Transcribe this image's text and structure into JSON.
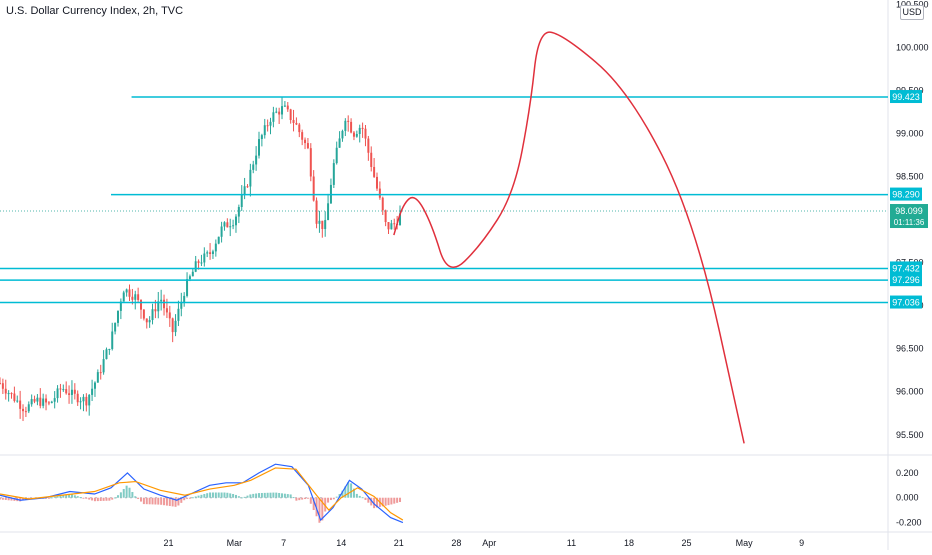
{
  "header": {
    "title": "U.S. Dollar Currency Index, 2h, TVC",
    "currency": "USD"
  },
  "colors": {
    "hline": "#00bcd4",
    "projection": "#e0303c",
    "up": "#26a69a",
    "down": "#ef5350",
    "macd": "#2962ff",
    "signal": "#ff9800",
    "price_badge": "#22ab94"
  },
  "chart_data": [
    {
      "type": "line",
      "title": "U.S. Dollar Currency Index, 2h, TVC",
      "xlabel": "",
      "ylabel": "",
      "ylim": [
        95.3,
        100.55
      ],
      "y_ticks": [
        "95.500",
        "96.000",
        "96.500",
        "97.000",
        "97.500",
        "98.000",
        "98.500",
        "99.000",
        "99.500",
        "100.000",
        "100.500"
      ],
      "x_ticks": [
        "21",
        "Mar",
        "7",
        "14",
        "21",
        "28",
        "Apr",
        "11",
        "18",
        "25",
        "May",
        "9"
      ],
      "x_tick_days": [
        -8,
        0,
        6,
        13,
        20,
        27,
        31,
        41,
        48,
        55,
        62,
        69
      ],
      "xlim": [
        -28.5,
        79.5
      ],
      "price_path_approx": [
        {
          "x": -28.5,
          "y": 96.1
        },
        {
          "x": -27,
          "y": 95.95
        },
        {
          "x": -25.5,
          "y": 95.8
        },
        {
          "x": -24,
          "y": 95.9
        },
        {
          "x": -22.5,
          "y": 95.85
        },
        {
          "x": -21,
          "y": 96.05
        },
        {
          "x": -19.5,
          "y": 95.95
        },
        {
          "x": -18,
          "y": 95.9
        },
        {
          "x": -16.5,
          "y": 96.2
        },
        {
          "x": -15,
          "y": 96.6
        },
        {
          "x": -13.5,
          "y": 97.2
        },
        {
          "x": -12,
          "y": 97.1
        },
        {
          "x": -10.5,
          "y": 96.8
        },
        {
          "x": -9,
          "y": 97.1
        },
        {
          "x": -7.5,
          "y": 96.7
        },
        {
          "x": -6,
          "y": 97.2
        },
        {
          "x": -4.5,
          "y": 97.5
        },
        {
          "x": -3,
          "y": 97.6
        },
        {
          "x": -1.5,
          "y": 97.9
        },
        {
          "x": 0,
          "y": 98.0
        },
        {
          "x": 1.5,
          "y": 98.4
        },
        {
          "x": 3,
          "y": 98.9
        },
        {
          "x": 4.5,
          "y": 99.2
        },
        {
          "x": 6,
          "y": 99.3
        },
        {
          "x": 7.5,
          "y": 99.1
        },
        {
          "x": 9,
          "y": 98.8
        },
        {
          "x": 10,
          "y": 98.0
        },
        {
          "x": 11,
          "y": 97.9
        },
        {
          "x": 12,
          "y": 98.6
        },
        {
          "x": 13.5,
          "y": 99.2
        },
        {
          "x": 14.5,
          "y": 99.0
        },
        {
          "x": 15.5,
          "y": 99.1
        },
        {
          "x": 16.5,
          "y": 98.7
        },
        {
          "x": 17.5,
          "y": 98.3
        },
        {
          "x": 18.5,
          "y": 97.9
        },
        {
          "x": 19.5,
          "y": 97.95
        },
        {
          "x": 20.5,
          "y": 98.1
        }
      ],
      "projection_path_approx": [
        {
          "x": 19.4,
          "y": 97.82
        },
        {
          "x": 20.5,
          "y": 98.18
        },
        {
          "x": 22,
          "y": 98.3
        },
        {
          "x": 24,
          "y": 97.95
        },
        {
          "x": 26,
          "y": 97.33
        },
        {
          "x": 30,
          "y": 97.7
        },
        {
          "x": 34,
          "y": 98.3
        },
        {
          "x": 36,
          "y": 99.3
        },
        {
          "x": 37,
          "y": 100.2
        },
        {
          "x": 40,
          "y": 100.15
        },
        {
          "x": 48,
          "y": 99.5
        },
        {
          "x": 56,
          "y": 98.0
        },
        {
          "x": 62,
          "y": 95.4
        }
      ],
      "horizontal_levels": [
        {
          "label": "99.423",
          "value": 99.423,
          "start_x": -12.5
        },
        {
          "label": "98.290",
          "value": 98.29,
          "start_x": -15
        },
        {
          "label": "97.432",
          "value": 97.432,
          "start_x": -28.5
        },
        {
          "label": "97.296",
          "value": 97.296,
          "start_x": -28.5
        },
        {
          "label": "97.036",
          "value": 97.036,
          "start_x": -28.5
        }
      ],
      "last_price": {
        "value": 98.099,
        "label": "98.099",
        "countdown": "01:11:36"
      }
    },
    {
      "type": "line",
      "title": "",
      "ylim": [
        -0.26,
        0.32
      ],
      "y_ticks": [
        "0.200",
        "0.000",
        "-0.200"
      ],
      "series": [
        {
          "role": "macd",
          "values": [
            {
              "x": -28.5,
              "y": 0.02
            },
            {
              "x": -26,
              "y": -0.02
            },
            {
              "x": -23,
              "y": 0.0
            },
            {
              "x": -20,
              "y": 0.05
            },
            {
              "x": -17,
              "y": 0.03
            },
            {
              "x": -15,
              "y": 0.08
            },
            {
              "x": -13,
              "y": 0.2
            },
            {
              "x": -11,
              "y": 0.07
            },
            {
              "x": -9,
              "y": 0.02
            },
            {
              "x": -7,
              "y": -0.02
            },
            {
              "x": -5,
              "y": 0.04
            },
            {
              "x": -3,
              "y": 0.1
            },
            {
              "x": -1,
              "y": 0.12
            },
            {
              "x": 1,
              "y": 0.12
            },
            {
              "x": 3,
              "y": 0.2
            },
            {
              "x": 5,
              "y": 0.27
            },
            {
              "x": 7,
              "y": 0.25
            },
            {
              "x": 9,
              "y": 0.1
            },
            {
              "x": 10.5,
              "y": -0.18
            },
            {
              "x": 12,
              "y": -0.08
            },
            {
              "x": 14,
              "y": 0.14
            },
            {
              "x": 15.5,
              "y": 0.07
            },
            {
              "x": 17,
              "y": -0.05
            },
            {
              "x": 19,
              "y": -0.16
            },
            {
              "x": 20.5,
              "y": -0.2
            }
          ]
        },
        {
          "role": "signal",
          "values": [
            {
              "x": -28.5,
              "y": 0.03
            },
            {
              "x": -25,
              "y": -0.01
            },
            {
              "x": -21,
              "y": 0.02
            },
            {
              "x": -17,
              "y": 0.05
            },
            {
              "x": -14,
              "y": 0.12
            },
            {
              "x": -12,
              "y": 0.13
            },
            {
              "x": -9,
              "y": 0.06
            },
            {
              "x": -6,
              "y": 0.02
            },
            {
              "x": -3,
              "y": 0.07
            },
            {
              "x": 0,
              "y": 0.1
            },
            {
              "x": 2,
              "y": 0.14
            },
            {
              "x": 5,
              "y": 0.24
            },
            {
              "x": 7.5,
              "y": 0.23
            },
            {
              "x": 10,
              "y": 0.02
            },
            {
              "x": 11.5,
              "y": -0.1
            },
            {
              "x": 13,
              "y": 0.0
            },
            {
              "x": 15,
              "y": 0.08
            },
            {
              "x": 17,
              "y": 0.01
            },
            {
              "x": 19,
              "y": -0.12
            },
            {
              "x": 20.5,
              "y": -0.18
            }
          ]
        }
      ]
    }
  ]
}
